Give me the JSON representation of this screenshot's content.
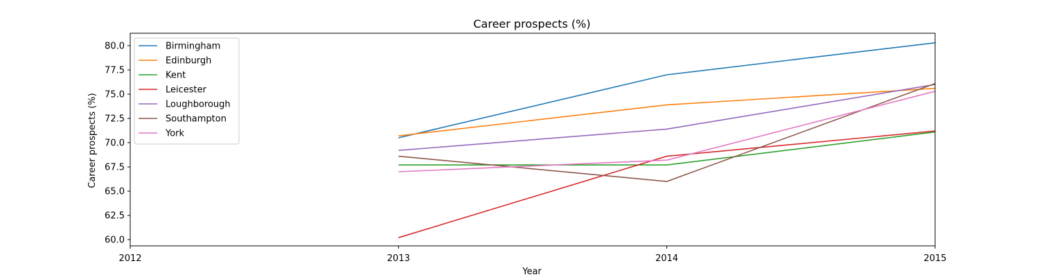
{
  "chart_data": {
    "type": "line",
    "title": "Career prospects (%)",
    "xlabel": "Year",
    "ylabel": "Career prospects (%)",
    "x_ticks": [
      "2012",
      "2013",
      "2014",
      "2015"
    ],
    "y_ticks": [
      "60.0",
      "62.5",
      "65.0",
      "67.5",
      "70.0",
      "72.5",
      "75.0",
      "77.5",
      "80.0"
    ],
    "xlim": [
      2012,
      2015
    ],
    "ylim": [
      59.3,
      81.0
    ],
    "grid": false,
    "legend_position": "upper-left",
    "x": [
      2013,
      2014,
      2015
    ],
    "series": [
      {
        "name": "Birmingham",
        "color": "#1f77b4",
        "values": [
          70.5,
          77.0,
          80.3
        ]
      },
      {
        "name": "Edinburgh",
        "color": "#ff7f0e",
        "values": [
          70.7,
          73.9,
          75.6
        ]
      },
      {
        "name": "Kent",
        "color": "#2ca02c",
        "values": [
          67.7,
          67.7,
          71.1
        ]
      },
      {
        "name": "Leicester",
        "color": "#d62728",
        "values": [
          60.2,
          68.6,
          71.2
        ]
      },
      {
        "name": "Loughborough",
        "color": "#9467bd",
        "values": [
          69.2,
          71.4,
          76.0
        ]
      },
      {
        "name": "Southampton",
        "color": "#8c564b",
        "values": [
          68.6,
          66.0,
          76.1
        ]
      },
      {
        "name": "York",
        "color": "#e377c2",
        "values": [
          67.0,
          68.2,
          75.3
        ]
      }
    ]
  }
}
